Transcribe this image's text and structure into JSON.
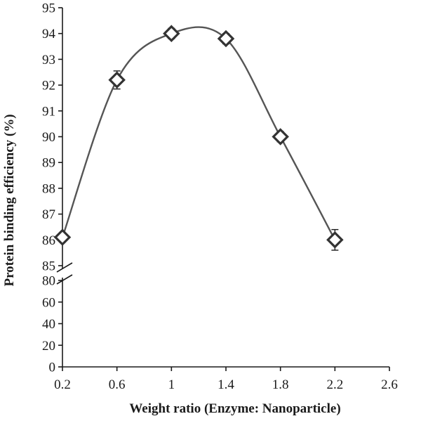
{
  "chart_data": {
    "type": "line",
    "title": "",
    "xlabel": "Weight ratio (Enzyme: Nanoparticle)",
    "ylabel": "Protein binding efficiency (%)",
    "x_ticks": [
      "0.2",
      "0.6",
      "1",
      "1.4",
      "1.8",
      "2.2",
      "2.6"
    ],
    "y_ticks_upper": [
      "85",
      "86",
      "87",
      "88",
      "89",
      "90",
      "91",
      "92",
      "93",
      "94",
      "95"
    ],
    "y_ticks_lower": [
      "0",
      "20",
      "40",
      "60",
      "80"
    ],
    "xlim": [
      0.2,
      2.6
    ],
    "ylim_upper": [
      85,
      95
    ],
    "ylim_lower": [
      0,
      80
    ],
    "axis_break": true,
    "grid": false,
    "series": [
      {
        "x": [
          0.2,
          0.6,
          1.0,
          1.4,
          1.8,
          2.2
        ],
        "y": [
          86.1,
          92.2,
          94.0,
          93.8,
          90.0,
          86.0
        ],
        "error": [
          0.1,
          0.35,
          0.2,
          0.2,
          0.2,
          0.4
        ],
        "marker": "diamond-open",
        "line": "smooth",
        "color": "#555555"
      }
    ]
  }
}
